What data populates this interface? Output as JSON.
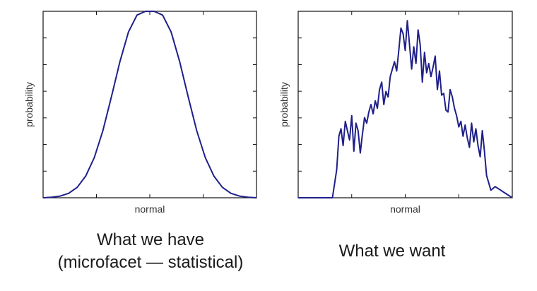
{
  "chart_data": [
    {
      "type": "line",
      "title": "",
      "xlabel": "normal",
      "ylabel": "probability",
      "caption_line1": "What we have",
      "caption_line2": "(microfacet — statistical)",
      "grid": false,
      "series": [
        {
          "color": "#1f1f8a",
          "x": [
            0,
            0.04,
            0.08,
            0.12,
            0.16,
            0.2,
            0.24,
            0.28,
            0.32,
            0.36,
            0.4,
            0.44,
            0.48,
            0.5,
            0.52,
            0.56,
            0.6,
            0.64,
            0.68,
            0.72,
            0.76,
            0.8,
            0.84,
            0.88,
            0.92,
            0.96,
            1
          ],
          "y": [
            0.0,
            0.003,
            0.009,
            0.024,
            0.056,
            0.117,
            0.216,
            0.36,
            0.54,
            0.73,
            0.889,
            0.98,
            1.0,
            1.0,
            1.0,
            0.98,
            0.889,
            0.73,
            0.54,
            0.36,
            0.216,
            0.117,
            0.056,
            0.024,
            0.009,
            0.003,
            0.0
          ]
        }
      ],
      "xlim": [
        0,
        1
      ],
      "ylim": [
        0,
        1
      ]
    },
    {
      "type": "line",
      "title": "",
      "xlabel": "normal",
      "ylabel": "probability",
      "caption": "What we want",
      "grid": false,
      "series": [
        {
          "color": "#1f1f8a",
          "x": [
            0,
            0.16,
            0.18,
            0.19,
            0.2,
            0.21,
            0.22,
            0.23,
            0.24,
            0.25,
            0.26,
            0.27,
            0.28,
            0.29,
            0.3,
            0.31,
            0.32,
            0.33,
            0.34,
            0.35,
            0.36,
            0.37,
            0.38,
            0.39,
            0.4,
            0.41,
            0.42,
            0.43,
            0.44,
            0.45,
            0.46,
            0.47,
            0.48,
            0.49,
            0.5,
            0.51,
            0.52,
            0.53,
            0.54,
            0.55,
            0.56,
            0.57,
            0.58,
            0.59,
            0.6,
            0.61,
            0.62,
            0.63,
            0.64,
            0.65,
            0.66,
            0.67,
            0.68,
            0.69,
            0.7,
            0.71,
            0.72,
            0.73,
            0.74,
            0.75,
            0.76,
            0.77,
            0.78,
            0.79,
            0.8,
            0.81,
            0.82,
            0.83,
            0.84,
            0.85,
            0.86,
            0.87,
            0.88,
            0.9,
            0.92,
            1
          ],
          "y": [
            0,
            0,
            0.15,
            0.33,
            0.37,
            0.28,
            0.41,
            0.36,
            0.31,
            0.44,
            0.25,
            0.4,
            0.36,
            0.24,
            0.34,
            0.43,
            0.4,
            0.46,
            0.5,
            0.45,
            0.52,
            0.48,
            0.58,
            0.62,
            0.5,
            0.57,
            0.54,
            0.65,
            0.69,
            0.73,
            0.68,
            0.79,
            0.91,
            0.88,
            0.79,
            0.95,
            0.82,
            0.69,
            0.81,
            0.72,
            0.9,
            0.82,
            0.62,
            0.78,
            0.67,
            0.72,
            0.65,
            0.7,
            0.76,
            0.58,
            0.68,
            0.55,
            0.56,
            0.47,
            0.46,
            0.58,
            0.54,
            0.48,
            0.44,
            0.38,
            0.41,
            0.33,
            0.39,
            0.32,
            0.27,
            0.4,
            0.3,
            0.37,
            0.28,
            0.22,
            0.36,
            0.25,
            0.12,
            0.04,
            0.06,
            0
          ]
        }
      ],
      "xlim": [
        0,
        1
      ],
      "ylim": [
        0,
        1
      ]
    }
  ]
}
